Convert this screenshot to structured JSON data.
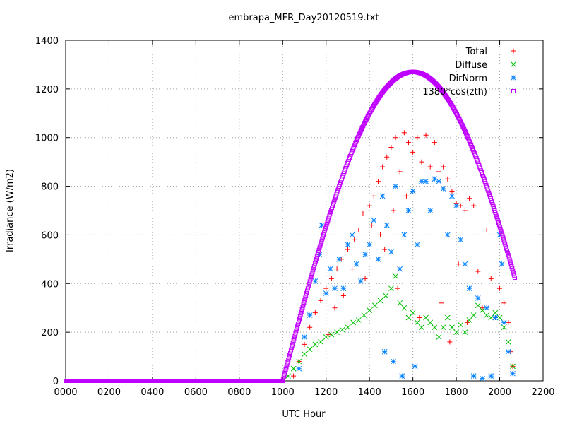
{
  "chart_data": {
    "type": "scatter",
    "title": "embrapa_MFR_Day20120519.txt",
    "xlabel": "UTC Hour",
    "ylabel": "Irradiance (W/m2)",
    "xlim": [
      0,
      2200
    ],
    "ylim": [
      0,
      1400
    ],
    "x_ticks": [
      "0000",
      "0200",
      "0400",
      "0600",
      "0800",
      "1000",
      "1200",
      "1400",
      "1600",
      "1800",
      "2000",
      "2200"
    ],
    "y_ticks": [
      "0",
      "200",
      "400",
      "600",
      "800",
      "1000",
      "1200",
      "1400"
    ],
    "grid": true,
    "legend_position": "top-right",
    "series": [
      {
        "name": "Total",
        "marker": "plus",
        "color": "#ff0000",
        "points": [
          [
            1050,
            20
          ],
          [
            1075,
            80
          ],
          [
            1100,
            150
          ],
          [
            1125,
            220
          ],
          [
            1150,
            280
          ],
          [
            1175,
            330
          ],
          [
            1200,
            380
          ],
          [
            1210,
            190
          ],
          [
            1225,
            420
          ],
          [
            1240,
            300
          ],
          [
            1250,
            460
          ],
          [
            1270,
            500
          ],
          [
            1280,
            350
          ],
          [
            1300,
            540
          ],
          [
            1320,
            460
          ],
          [
            1330,
            580
          ],
          [
            1350,
            620
          ],
          [
            1370,
            690
          ],
          [
            1380,
            420
          ],
          [
            1400,
            720
          ],
          [
            1410,
            640
          ],
          [
            1420,
            760
          ],
          [
            1440,
            820
          ],
          [
            1450,
            600
          ],
          [
            1460,
            880
          ],
          [
            1470,
            540
          ],
          [
            1480,
            920
          ],
          [
            1500,
            960
          ],
          [
            1510,
            700
          ],
          [
            1520,
            1000
          ],
          [
            1530,
            380
          ],
          [
            1540,
            860
          ],
          [
            1560,
            1020
          ],
          [
            1570,
            760
          ],
          [
            1580,
            980
          ],
          [
            1600,
            940
          ],
          [
            1620,
            1000
          ],
          [
            1630,
            260
          ],
          [
            1640,
            900
          ],
          [
            1660,
            1010
          ],
          [
            1680,
            880
          ],
          [
            1700,
            980
          ],
          [
            1720,
            860
          ],
          [
            1730,
            320
          ],
          [
            1740,
            880
          ],
          [
            1760,
            830
          ],
          [
            1770,
            160
          ],
          [
            1780,
            780
          ],
          [
            1800,
            730
          ],
          [
            1810,
            480
          ],
          [
            1820,
            720
          ],
          [
            1840,
            700
          ],
          [
            1850,
            240
          ],
          [
            1860,
            750
          ],
          [
            1880,
            720
          ],
          [
            1900,
            450
          ],
          [
            1920,
            300
          ],
          [
            1940,
            620
          ],
          [
            1960,
            420
          ],
          [
            1980,
            260
          ],
          [
            2000,
            380
          ],
          [
            2020,
            320
          ],
          [
            2040,
            240
          ],
          [
            2050,
            120
          ],
          [
            2060,
            60
          ]
        ]
      },
      {
        "name": "Diffuse",
        "marker": "x",
        "color": "#00c000",
        "points": [
          [
            1025,
            20
          ],
          [
            1050,
            50
          ],
          [
            1075,
            80
          ],
          [
            1100,
            110
          ],
          [
            1125,
            130
          ],
          [
            1150,
            150
          ],
          [
            1175,
            160
          ],
          [
            1200,
            180
          ],
          [
            1225,
            190
          ],
          [
            1250,
            200
          ],
          [
            1275,
            210
          ],
          [
            1300,
            220
          ],
          [
            1325,
            240
          ],
          [
            1350,
            250
          ],
          [
            1375,
            270
          ],
          [
            1400,
            290
          ],
          [
            1425,
            310
          ],
          [
            1450,
            330
          ],
          [
            1475,
            350
          ],
          [
            1500,
            380
          ],
          [
            1520,
            430
          ],
          [
            1540,
            320
          ],
          [
            1560,
            300
          ],
          [
            1580,
            260
          ],
          [
            1600,
            280
          ],
          [
            1620,
            240
          ],
          [
            1640,
            220
          ],
          [
            1660,
            260
          ],
          [
            1680,
            240
          ],
          [
            1700,
            220
          ],
          [
            1720,
            180
          ],
          [
            1740,
            220
          ],
          [
            1760,
            260
          ],
          [
            1780,
            220
          ],
          [
            1800,
            200
          ],
          [
            1820,
            230
          ],
          [
            1840,
            200
          ],
          [
            1860,
            250
          ],
          [
            1880,
            270
          ],
          [
            1900,
            310
          ],
          [
            1920,
            290
          ],
          [
            1940,
            270
          ],
          [
            1960,
            260
          ],
          [
            1980,
            280
          ],
          [
            2000,
            260
          ],
          [
            2020,
            220
          ],
          [
            2040,
            160
          ],
          [
            2060,
            60
          ]
        ]
      },
      {
        "name": "DirNorm",
        "marker": "star",
        "color": "#0080ff",
        "points": [
          [
            1075,
            50
          ],
          [
            1100,
            180
          ],
          [
            1125,
            270
          ],
          [
            1150,
            410
          ],
          [
            1170,
            520
          ],
          [
            1180,
            640
          ],
          [
            1200,
            360
          ],
          [
            1220,
            460
          ],
          [
            1240,
            380
          ],
          [
            1260,
            500
          ],
          [
            1280,
            380
          ],
          [
            1300,
            560
          ],
          [
            1320,
            600
          ],
          [
            1340,
            480
          ],
          [
            1360,
            410
          ],
          [
            1380,
            520
          ],
          [
            1400,
            560
          ],
          [
            1420,
            660
          ],
          [
            1440,
            500
          ],
          [
            1460,
            760
          ],
          [
            1470,
            120
          ],
          [
            1480,
            640
          ],
          [
            1500,
            530
          ],
          [
            1510,
            80
          ],
          [
            1520,
            800
          ],
          [
            1540,
            460
          ],
          [
            1550,
            20
          ],
          [
            1560,
            600
          ],
          [
            1580,
            700
          ],
          [
            1600,
            780
          ],
          [
            1610,
            60
          ],
          [
            1620,
            560
          ],
          [
            1640,
            820
          ],
          [
            1660,
            820
          ],
          [
            1680,
            700
          ],
          [
            1700,
            830
          ],
          [
            1720,
            820
          ],
          [
            1740,
            790
          ],
          [
            1760,
            600
          ],
          [
            1780,
            760
          ],
          [
            1800,
            720
          ],
          [
            1820,
            580
          ],
          [
            1840,
            480
          ],
          [
            1860,
            380
          ],
          [
            1880,
            20
          ],
          [
            1900,
            340
          ],
          [
            1920,
            10
          ],
          [
            1940,
            300
          ],
          [
            1960,
            20
          ],
          [
            1980,
            260
          ],
          [
            2000,
            600
          ],
          [
            2010,
            480
          ],
          [
            2020,
            240
          ],
          [
            2040,
            120
          ],
          [
            2060,
            30
          ]
        ]
      },
      {
        "name": "1380*cos(zth)",
        "marker": "square",
        "color": "#c000ff",
        "x_start": 0,
        "x_end": 2070,
        "peak_x": 1600,
        "peak_y": 1270,
        "zero_before_x": 1000,
        "end_y": 420
      }
    ]
  }
}
